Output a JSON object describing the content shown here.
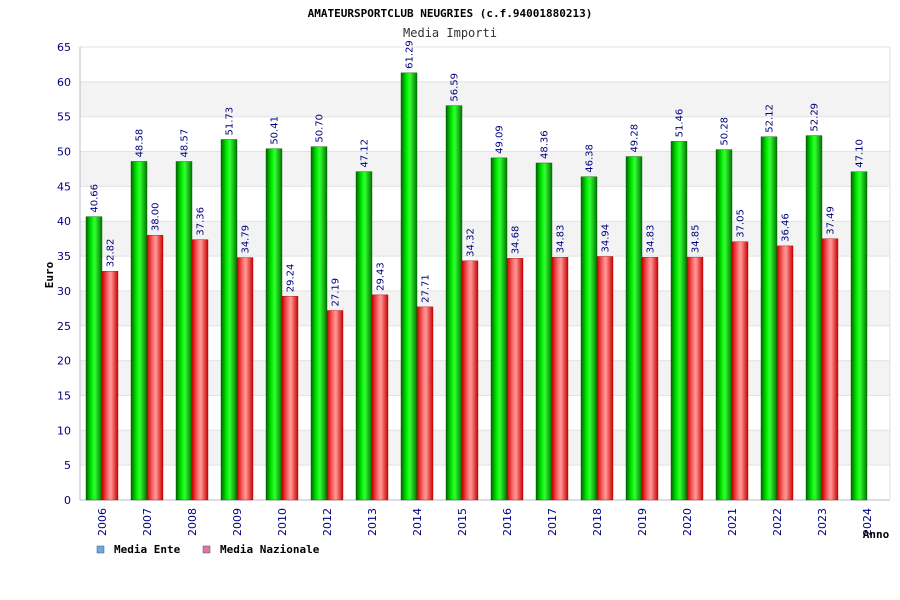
{
  "chart_data": {
    "type": "bar",
    "title": "AMATEURSPORTCLUB NEUGRIES (c.f.94001880213)",
    "subtitle": "Media Importi",
    "xlabel": "Anno",
    "ylabel": "Euro",
    "ylim": [
      0,
      65
    ],
    "y_ticks": [
      0,
      5,
      10,
      15,
      20,
      25,
      30,
      35,
      40,
      45,
      50,
      55,
      60,
      65
    ],
    "grid": true,
    "legend_position": "bottom-left",
    "categories": [
      "2006",
      "2007",
      "2008",
      "2009",
      "2010",
      "2012",
      "2013",
      "2014",
      "2015",
      "2016",
      "2017",
      "2018",
      "2019",
      "2020",
      "2021",
      "2022",
      "2023",
      "2024"
    ],
    "series": [
      {
        "name": "Media Ente",
        "color": "#00cc00",
        "legend_color": "#66aaee",
        "values": [
          40.66,
          48.58,
          48.57,
          51.73,
          50.41,
          50.7,
          47.12,
          61.29,
          56.59,
          49.09,
          48.36,
          46.38,
          49.28,
          51.46,
          50.28,
          52.12,
          52.29,
          47.1
        ],
        "labels": [
          "40.66",
          "48.58",
          "48.57",
          "51.73",
          "50.41",
          "50.70",
          "47.12",
          "61.29",
          "56.59",
          "49.09",
          "48.36",
          "46.38",
          "49.28",
          "51.46",
          "50.28",
          "52.12",
          "52.29",
          "47.10"
        ]
      },
      {
        "name": "Media Nazionale",
        "color": "#ee2222",
        "legend_color": "#dd77aa",
        "values": [
          32.82,
          38.0,
          37.36,
          34.79,
          29.24,
          27.19,
          29.43,
          27.71,
          34.32,
          34.68,
          34.83,
          34.94,
          34.83,
          34.85,
          37.05,
          36.46,
          37.49,
          null
        ],
        "labels": [
          "32.82",
          "38.00",
          "37.36",
          "34.79",
          "29.24",
          "27.19",
          "29.43",
          "27.71",
          "34.32",
          "34.68",
          "34.83",
          "34.94",
          "34.83",
          "34.85",
          "37.05",
          "36.46",
          "37.49",
          null
        ]
      }
    ]
  }
}
